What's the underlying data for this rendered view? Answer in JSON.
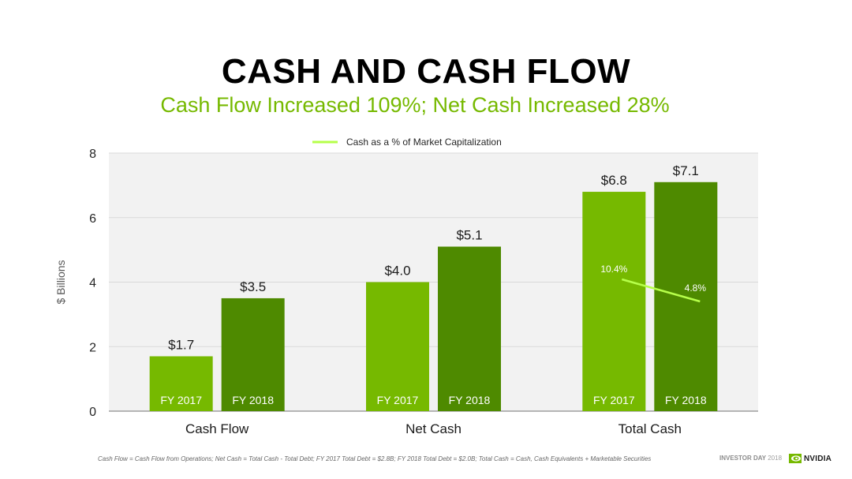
{
  "title": "CASH AND CASH FLOW",
  "subtitle": "Cash Flow Increased 109%; Net Cash Increased 28%",
  "footer_note": "Cash Flow = Cash Flow from Operations; Net Cash = Total Cash - Total Debt; FY 2017 Total Debt = $2.8B; FY 2018 Total Debt = $2.0B; Total Cash = Cash, Cash Equivalents + Marketable Securities",
  "event_label": "INVESTOR DAY",
  "event_year": "2018",
  "logo_text": "NVIDIA",
  "colors": {
    "fy2017": "#76b900",
    "fy2018": "#4e8a00",
    "line": "#b6ff4a",
    "plot_bg": "#f2f2f2",
    "accent": "#76b900"
  },
  "chart_data": {
    "type": "bar",
    "title": "",
    "xlabel": "",
    "ylabel": "$ Billions",
    "ylim": [
      0,
      8
    ],
    "yticks": [
      "0",
      "2",
      "4",
      "6",
      "8"
    ],
    "grid": true,
    "legend_position": "top-center",
    "categories": [
      "Cash Flow",
      "Net Cash",
      "Total Cash"
    ],
    "series": [
      {
        "name": "FY 2017",
        "values": [
          1.7,
          4.0,
          6.8
        ],
        "labels": [
          "$1.7",
          "$4.0",
          "$6.8"
        ]
      },
      {
        "name": "FY 2018",
        "values": [
          3.5,
          5.1,
          7.1
        ],
        "labels": [
          "$3.5",
          "$5.1",
          "$7.1"
        ]
      }
    ],
    "line_series": {
      "name": "Cash as a % of Market Capitalization",
      "category": "Total Cash",
      "values": [
        10.4,
        4.8
      ],
      "labels": [
        "10.4%",
        "4.8%"
      ]
    }
  }
}
